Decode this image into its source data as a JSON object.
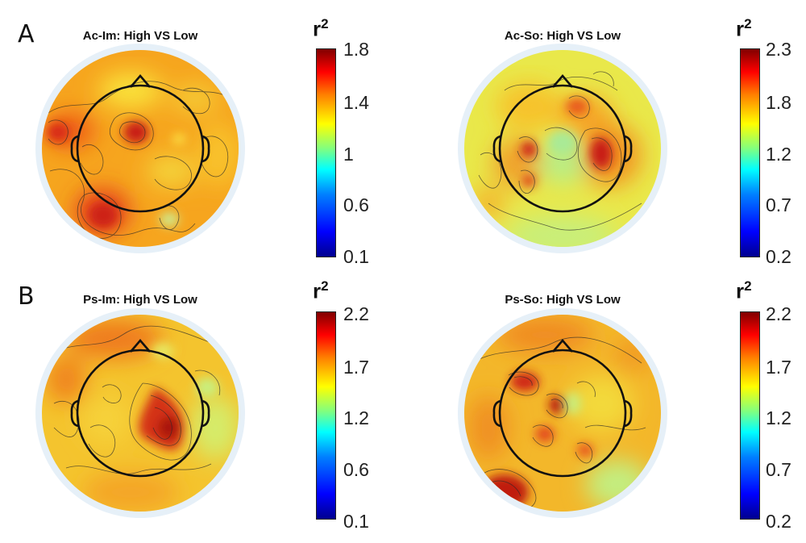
{
  "panels": [
    {
      "letter": "A"
    },
    {
      "letter": "B"
    }
  ],
  "maps": [
    {
      "title": "Ac-Im: High VS Low",
      "colorbar": {
        "label": "r",
        "exponent": "2",
        "ticks": [
          "1.8",
          "1.4",
          "1",
          "0.6",
          "0.1"
        ]
      }
    },
    {
      "title": "Ac-So: High VS Low",
      "colorbar": {
        "label": "r",
        "exponent": "2",
        "ticks": [
          "2.3",
          "1.8",
          "1.2",
          "0.7",
          "0.2"
        ]
      }
    },
    {
      "title": "Ps-Im: High VS Low",
      "colorbar": {
        "label": "r",
        "exponent": "2",
        "ticks": [
          "2.2",
          "1.7",
          "1.2",
          "0.6",
          "0.1"
        ]
      }
    },
    {
      "title": "Ps-So: High VS Low",
      "colorbar": {
        "label": "r",
        "exponent": "2",
        "ticks": [
          "2.2",
          "1.7",
          "1.2",
          "0.7",
          "0.2"
        ]
      }
    }
  ],
  "colors": {
    "colormap": [
      "#00008f",
      "#0000ff",
      "#00ffff",
      "#ffff00",
      "#ff8000",
      "#ff0000",
      "#800000"
    ],
    "head_outline": "#111111",
    "rim": "#e6f0f8"
  }
}
